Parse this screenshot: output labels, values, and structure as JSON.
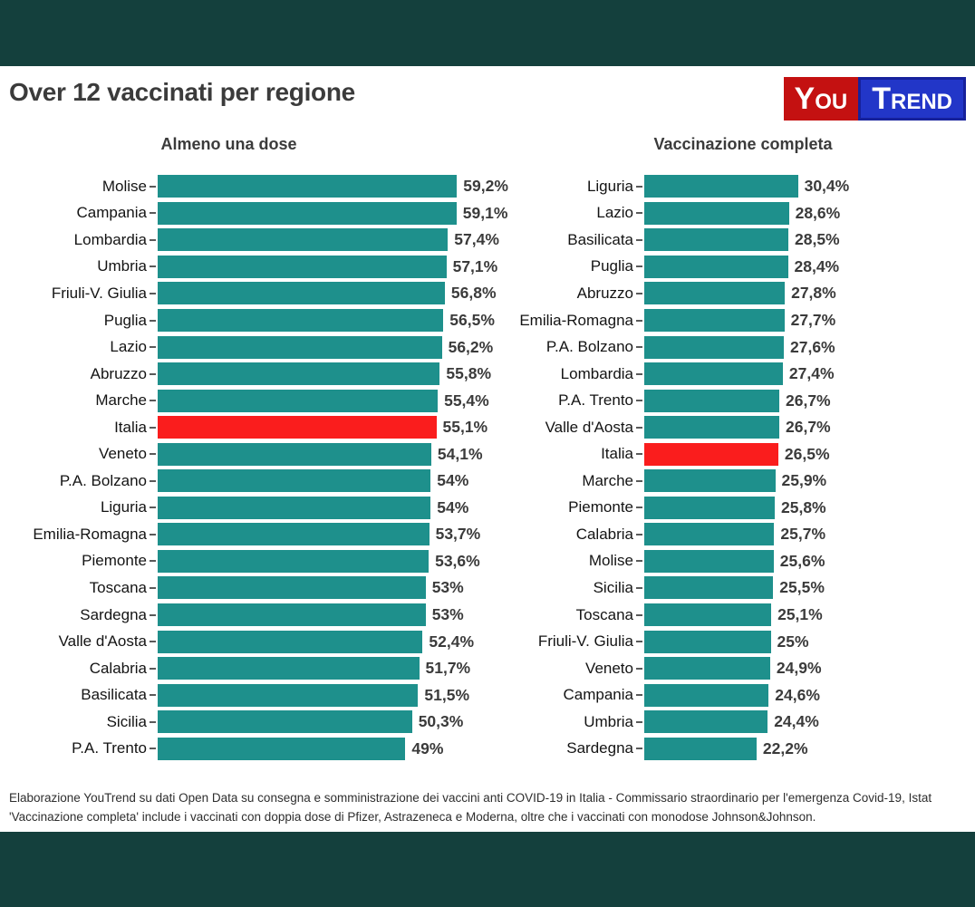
{
  "header": {
    "title": "Over 12 vaccinati per regione",
    "logo": {
      "part1": "You",
      "part2": "Trend",
      "red": "#c41111",
      "blue": "#2236c8"
    }
  },
  "colors": {
    "bar_teal": "#1e908c",
    "highlight_red": "#fa1d1d",
    "frame_dark_teal": "#14403d"
  },
  "chart_data": [
    {
      "type": "bar",
      "orientation": "horizontal",
      "title": "Almeno una dose",
      "unit": "%",
      "xlim": [
        0,
        60
      ],
      "highlight_category": "Italia",
      "categories": [
        "Molise",
        "Campania",
        "Lombardia",
        "Umbria",
        "Friuli-V. Giulia",
        "Puglia",
        "Lazio",
        "Abruzzo",
        "Marche",
        "Italia",
        "Veneto",
        "P.A. Bolzano",
        "Liguria",
        "Emilia-Romagna",
        "Piemonte",
        "Toscana",
        "Sardegna",
        "Valle d'Aosta",
        "Calabria",
        "Basilicata",
        "Sicilia",
        "P.A. Trento"
      ],
      "values": [
        59.2,
        59.1,
        57.4,
        57.1,
        56.8,
        56.5,
        56.2,
        55.8,
        55.4,
        55.1,
        54.1,
        54,
        54,
        53.7,
        53.6,
        53,
        53,
        52.4,
        51.7,
        51.5,
        50.3,
        49
      ],
      "value_labels": [
        "59,2%",
        "59,1%",
        "57,4%",
        "57,1%",
        "56,8%",
        "56,5%",
        "56,2%",
        "55,8%",
        "55,4%",
        "55,1%",
        "54,1%",
        "54%",
        "54%",
        "53,7%",
        "53,6%",
        "53%",
        "53%",
        "52,4%",
        "51,7%",
        "51,5%",
        "50,3%",
        "49%"
      ]
    },
    {
      "type": "bar",
      "orientation": "horizontal",
      "title": "Vaccinazione completa",
      "unit": "%",
      "xlim": [
        0,
        60
      ],
      "highlight_category": "Italia",
      "categories": [
        "Liguria",
        "Lazio",
        "Basilicata",
        "Puglia",
        "Abruzzo",
        "Emilia-Romagna",
        "P.A. Bolzano",
        "Lombardia",
        "P.A. Trento",
        "Valle d'Aosta",
        "Italia",
        "Marche",
        "Piemonte",
        "Calabria",
        "Molise",
        "Sicilia",
        "Toscana",
        "Friuli-V. Giulia",
        "Veneto",
        "Campania",
        "Umbria",
        "Sardegna"
      ],
      "values": [
        30.4,
        28.6,
        28.5,
        28.4,
        27.8,
        27.7,
        27.6,
        27.4,
        26.7,
        26.7,
        26.5,
        25.9,
        25.8,
        25.7,
        25.6,
        25.5,
        25.1,
        25,
        24.9,
        24.6,
        24.4,
        22.2
      ],
      "value_labels": [
        "30,4%",
        "28,6%",
        "28,5%",
        "28,4%",
        "27,8%",
        "27,7%",
        "27,6%",
        "27,4%",
        "26,7%",
        "26,7%",
        "26,5%",
        "25,9%",
        "25,8%",
        "25,7%",
        "25,6%",
        "25,5%",
        "25,1%",
        "25%",
        "24,9%",
        "24,6%",
        "24,4%",
        "22,2%"
      ]
    }
  ],
  "footer": {
    "line1": "Elaborazione YouTrend su dati Open Data su consegna e somministrazione dei vaccini anti COVID-19 in Italia - Commissario straordinario per l'emergenza Covid-19, Istat",
    "line2": "'Vaccinazione completa' include i vaccinati con doppia dose di Pfizer, Astrazeneca e Moderna, oltre che i vaccinati con monodose Johnson&Johnson."
  }
}
